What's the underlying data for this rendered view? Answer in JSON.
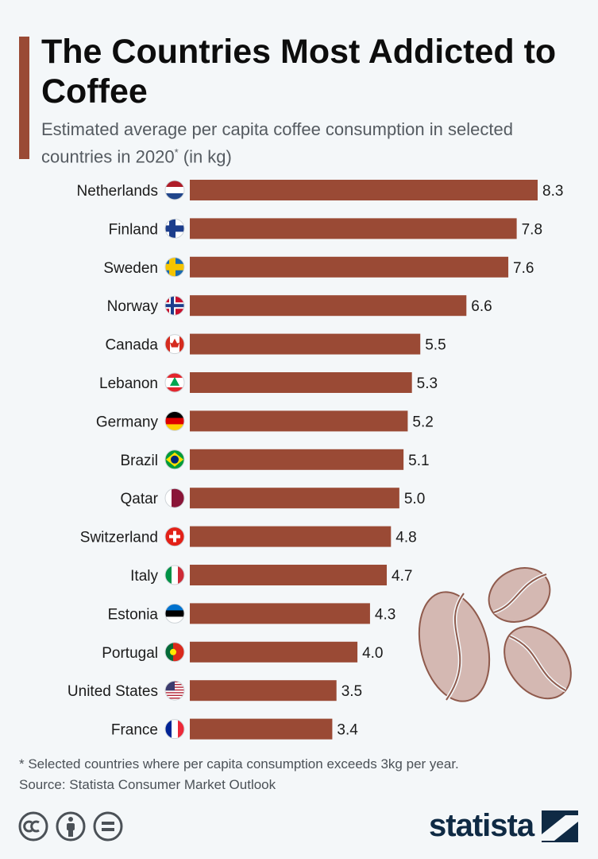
{
  "header": {
    "title": "The Countries Most Addicted to Coffee",
    "subtitle_main": "Estimated average per capita coffee consumption in selected countries in 2020",
    "subtitle_asterisk": "*",
    "subtitle_unit": " (in kg)"
  },
  "colors": {
    "bar": "#9a4a35",
    "accent": "#9a4a35",
    "bean": "#d4b8b2"
  },
  "chart_data": {
    "type": "bar",
    "orientation": "horizontal",
    "categories": [
      "Netherlands",
      "Finland",
      "Sweden",
      "Norway",
      "Canada",
      "Lebanon",
      "Germany",
      "Brazil",
      "Qatar",
      "Switzerland",
      "Italy",
      "Estonia",
      "Portugal",
      "United States",
      "France"
    ],
    "values": [
      8.3,
      7.8,
      7.6,
      6.6,
      5.5,
      5.3,
      5.2,
      5.1,
      5.0,
      4.8,
      4.7,
      4.3,
      4.0,
      3.5,
      3.4
    ],
    "value_labels": [
      "8.3",
      "7.8",
      "7.6",
      "6.6",
      "5.5",
      "5.3",
      "5.2",
      "5.1",
      "5.0",
      "4.8",
      "4.7",
      "4.3",
      "4.0",
      "3.5",
      "3.4"
    ],
    "flag_icons": [
      "netherlands-flag-icon",
      "finland-flag-icon",
      "sweden-flag-icon",
      "norway-flag-icon",
      "canada-flag-icon",
      "lebanon-flag-icon",
      "germany-flag-icon",
      "brazil-flag-icon",
      "qatar-flag-icon",
      "switzerland-flag-icon",
      "italy-flag-icon",
      "estonia-flag-icon",
      "portugal-flag-icon",
      "usa-flag-icon",
      "france-flag-icon"
    ],
    "xlim": [
      0,
      8.3
    ],
    "grid": false,
    "legend": "none"
  },
  "footer": {
    "footnote": "* Selected countries where per capita consumption exceeds 3kg per year.",
    "source": "Source: Statista Consumer Market Outlook",
    "logo_text": "statista",
    "license_icons": [
      "cc-icon",
      "attribution-icon",
      "no-derivatives-icon"
    ]
  },
  "decoration": {
    "icon": "coffee-beans-icon"
  }
}
